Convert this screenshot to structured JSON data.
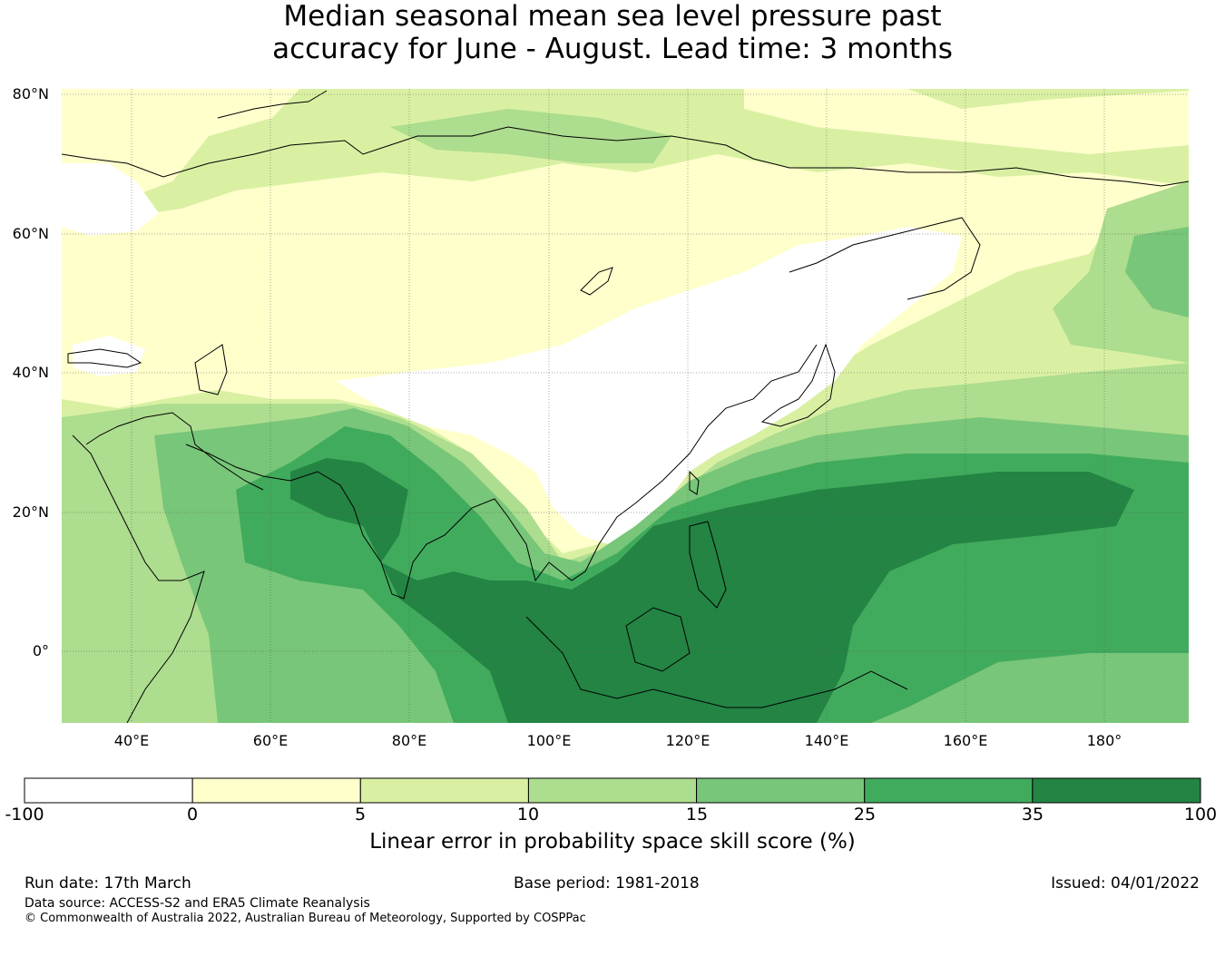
{
  "title": {
    "line1": "Median seasonal mean sea level pressure past",
    "line2": "accuracy for June - August. Lead time: 3 months"
  },
  "axes": {
    "lat_labels": [
      "80°N",
      "60°N",
      "40°N",
      "20°N",
      "0°"
    ],
    "lon_labels": [
      "40°E",
      "60°E",
      "80°E",
      "100°E",
      "120°E",
      "140°E",
      "160°E",
      "180°"
    ]
  },
  "colorbar": {
    "ticks": [
      "-100",
      "0",
      "5",
      "10",
      "15",
      "25",
      "35",
      "100"
    ],
    "colors": [
      "#ffffff",
      "#ffffcc",
      "#d9f0a3",
      "#addd8e",
      "#78c679",
      "#41ab5d",
      "#238443"
    ],
    "label": "Linear error in probability space skill score (%)"
  },
  "footer": {
    "run_date": "Run date: 17th March",
    "base_period": "Base period: 1981-2018",
    "issued": "Issued: 04/01/2022",
    "data_source": "Data source: ACCESS-S2 and ERA5 Climate Reanalysis",
    "copyright": "© Commonwealth of Australia 2022, Australian Bureau of Meteorology, Supported by COSPPac"
  }
}
